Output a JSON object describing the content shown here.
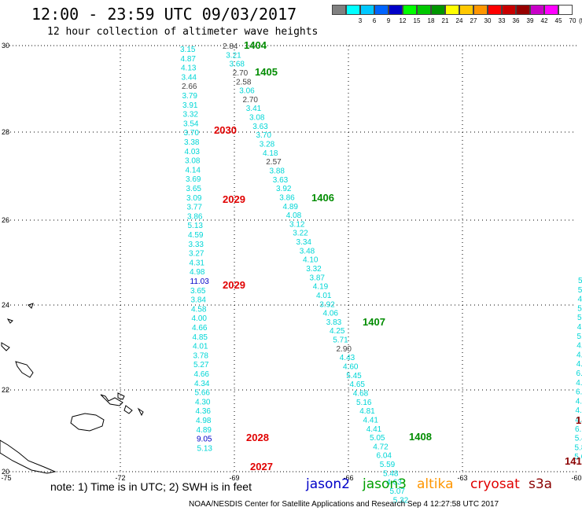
{
  "header": {
    "title": "12:00 - 23:59 UTC 09/03/2017",
    "subtitle": "12 hour collection of altimeter wave heights"
  },
  "legend": {
    "unit": "(ft)",
    "swatches": [
      {
        "color": "#808080",
        "label": ""
      },
      {
        "color": "#00ffff",
        "label": "3"
      },
      {
        "color": "#00c8ff",
        "label": "6"
      },
      {
        "color": "#0064ff",
        "label": "9"
      },
      {
        "color": "#0000c8",
        "label": "12"
      },
      {
        "color": "#00ff00",
        "label": "15"
      },
      {
        "color": "#00c800",
        "label": "18"
      },
      {
        "color": "#009600",
        "label": "21"
      },
      {
        "color": "#ffff00",
        "label": "24"
      },
      {
        "color": "#ffc800",
        "label": "27"
      },
      {
        "color": "#ff9600",
        "label": "30"
      },
      {
        "color": "#ff0000",
        "label": "33"
      },
      {
        "color": "#c80000",
        "label": "36"
      },
      {
        "color": "#960000",
        "label": "39"
      },
      {
        "color": "#c800c8",
        "label": "42"
      },
      {
        "color": "#ff00ff",
        "label": "45"
      },
      {
        "color": "#ffffff",
        "label": "70"
      }
    ]
  },
  "map": {
    "lon_ticks": [
      "-75",
      "-72",
      "-69",
      "-66",
      "-63",
      "-60"
    ],
    "lat_ticks": [
      "30",
      "28",
      "26",
      "24",
      "22",
      "20"
    ],
    "colors": {
      "cyan": "#00d6d6",
      "gray": "#444444",
      "blue": "#0000c8",
      "red": "#e00000",
      "green": "#008c00",
      "darkred": "#8b0000"
    },
    "pass_labels": [
      {
        "text": "1404",
        "color": "green"
      },
      {
        "text": "1405",
        "color": "green"
      },
      {
        "text": "2030",
        "color": "red"
      },
      {
        "text": "2029",
        "color": "red"
      },
      {
        "text": "1406",
        "color": "green"
      },
      {
        "text": "2029",
        "color": "red"
      },
      {
        "text": "1407",
        "color": "green"
      },
      {
        "text": "2028",
        "color": "red"
      },
      {
        "text": "1408",
        "color": "green"
      },
      {
        "text": "2027",
        "color": "red"
      },
      {
        "text": "1-",
        "color": "darkred"
      },
      {
        "text": "141",
        "color": "darkred"
      }
    ],
    "tracks": [
      {
        "name": "track-a",
        "values": [
          {
            "v": "3.15",
            "c": "cyan"
          },
          {
            "v": "4.87",
            "c": "cyan"
          },
          {
            "v": "4.13",
            "c": "cyan"
          },
          {
            "v": "3.44",
            "c": "cyan"
          },
          {
            "v": "2.66",
            "c": "gray"
          },
          {
            "v": "3.79",
            "c": "cyan"
          },
          {
            "v": "3.91",
            "c": "cyan"
          },
          {
            "v": "3.32",
            "c": "cyan"
          },
          {
            "v": "3.54",
            "c": "cyan"
          },
          {
            "v": "3.70",
            "c": "cyan"
          },
          {
            "v": "3.38",
            "c": "cyan"
          },
          {
            "v": "4.03",
            "c": "cyan"
          },
          {
            "v": "3.08",
            "c": "cyan"
          },
          {
            "v": "4.14",
            "c": "cyan"
          },
          {
            "v": "3.69",
            "c": "cyan"
          },
          {
            "v": "3.65",
            "c": "cyan"
          },
          {
            "v": "3.09",
            "c": "cyan"
          },
          {
            "v": "3.77",
            "c": "cyan"
          },
          {
            "v": "3.86",
            "c": "cyan"
          },
          {
            "v": "5.13",
            "c": "cyan"
          },
          {
            "v": "4.59",
            "c": "cyan"
          },
          {
            "v": "3.33",
            "c": "cyan"
          },
          {
            "v": "3.27",
            "c": "cyan"
          },
          {
            "v": "4.31",
            "c": "cyan"
          },
          {
            "v": "4.98",
            "c": "cyan"
          },
          {
            "v": "11.03",
            "c": "blue"
          },
          {
            "v": "3.65",
            "c": "cyan"
          },
          {
            "v": "3.84",
            "c": "cyan"
          },
          {
            "v": "4.58",
            "c": "cyan"
          },
          {
            "v": "4.00",
            "c": "cyan"
          },
          {
            "v": "4.66",
            "c": "cyan"
          },
          {
            "v": "4.85",
            "c": "cyan"
          },
          {
            "v": "4.01",
            "c": "cyan"
          },
          {
            "v": "3.78",
            "c": "cyan"
          },
          {
            "v": "5.27",
            "c": "cyan"
          },
          {
            "v": "4.66",
            "c": "cyan"
          },
          {
            "v": "4.34",
            "c": "cyan"
          },
          {
            "v": "5.66",
            "c": "cyan"
          },
          {
            "v": "4.30",
            "c": "cyan"
          },
          {
            "v": "4.36",
            "c": "cyan"
          },
          {
            "v": "4.98",
            "c": "cyan"
          },
          {
            "v": "4.89",
            "c": "cyan"
          },
          {
            "v": "9.05",
            "c": "blue"
          },
          {
            "v": "5.13",
            "c": "cyan"
          }
        ]
      },
      {
        "name": "track-b",
        "values": [
          {
            "v": "2.84",
            "c": "gray"
          },
          {
            "v": "3.21",
            "c": "cyan"
          },
          {
            "v": "3.68",
            "c": "cyan"
          },
          {
            "v": "2.70",
            "c": "gray"
          },
          {
            "v": "2.58",
            "c": "gray"
          },
          {
            "v": "3.06",
            "c": "cyan"
          },
          {
            "v": "2.70",
            "c": "gray"
          },
          {
            "v": "3.41",
            "c": "cyan"
          },
          {
            "v": "3.08",
            "c": "cyan"
          },
          {
            "v": "3.63",
            "c": "cyan"
          },
          {
            "v": "3.70",
            "c": "cyan"
          },
          {
            "v": "3.28",
            "c": "cyan"
          },
          {
            "v": "4.18",
            "c": "cyan"
          },
          {
            "v": "2.57",
            "c": "gray"
          },
          {
            "v": "3.88",
            "c": "cyan"
          },
          {
            "v": "3.63",
            "c": "cyan"
          },
          {
            "v": "3.92",
            "c": "cyan"
          },
          {
            "v": "3.86",
            "c": "cyan"
          },
          {
            "v": "4.89",
            "c": "cyan"
          },
          {
            "v": "4.08",
            "c": "cyan"
          },
          {
            "v": "3.12",
            "c": "cyan"
          },
          {
            "v": "3.22",
            "c": "cyan"
          },
          {
            "v": "3.34",
            "c": "cyan"
          },
          {
            "v": "3.48",
            "c": "cyan"
          },
          {
            "v": "4.10",
            "c": "cyan"
          },
          {
            "v": "3.32",
            "c": "cyan"
          },
          {
            "v": "3.87",
            "c": "cyan"
          },
          {
            "v": "4.19",
            "c": "cyan"
          },
          {
            "v": "4.01",
            "c": "cyan"
          },
          {
            "v": "3.92",
            "c": "cyan"
          },
          {
            "v": "4.06",
            "c": "cyan"
          },
          {
            "v": "3.83",
            "c": "cyan"
          },
          {
            "v": "4.25",
            "c": "cyan"
          },
          {
            "v": "5.71",
            "c": "cyan"
          },
          {
            "v": "2.90",
            "c": "gray"
          },
          {
            "v": "4.43",
            "c": "cyan"
          },
          {
            "v": "4.60",
            "c": "cyan"
          },
          {
            "v": "5.45",
            "c": "cyan"
          },
          {
            "v": "4.65",
            "c": "cyan"
          },
          {
            "v": "4.68",
            "c": "cyan"
          },
          {
            "v": "5.16",
            "c": "cyan"
          },
          {
            "v": "4.81",
            "c": "cyan"
          },
          {
            "v": "4.41",
            "c": "cyan"
          },
          {
            "v": "4.41",
            "c": "cyan"
          },
          {
            "v": "5.05",
            "c": "cyan"
          },
          {
            "v": "4.72",
            "c": "cyan"
          },
          {
            "v": "6.04",
            "c": "cyan"
          },
          {
            "v": "5.59",
            "c": "cyan"
          },
          {
            "v": "5.48",
            "c": "cyan"
          },
          {
            "v": "4.63",
            "c": "cyan"
          },
          {
            "v": "5.07",
            "c": "cyan"
          },
          {
            "v": "5.32",
            "c": "cyan"
          }
        ]
      },
      {
        "name": "track-c",
        "values": [
          {
            "v": "5.",
            "c": "cyan"
          },
          {
            "v": "5.",
            "c": "cyan"
          },
          {
            "v": "4.",
            "c": "cyan"
          },
          {
            "v": "5.",
            "c": "cyan"
          },
          {
            "v": "5.2",
            "c": "cyan"
          },
          {
            "v": "4.7",
            "c": "cyan"
          },
          {
            "v": "5.70",
            "c": "cyan"
          },
          {
            "v": "4.85",
            "c": "cyan"
          },
          {
            "v": "4.65",
            "c": "cyan"
          },
          {
            "v": "4.19",
            "c": "cyan"
          },
          {
            "v": "6.19",
            "c": "cyan"
          },
          {
            "v": "4.89",
            "c": "cyan"
          },
          {
            "v": "6.24",
            "c": "cyan"
          },
          {
            "v": "4.74",
            "c": "cyan"
          },
          {
            "v": "4.99",
            "c": "cyan"
          },
          {
            "v": "4.68",
            "c": "cyan"
          },
          {
            "v": "6.17",
            "c": "cyan"
          },
          {
            "v": "5.44",
            "c": "cyan"
          },
          {
            "v": "5.84",
            "c": "cyan"
          },
          {
            "v": "5.66",
            "c": "cyan"
          }
        ]
      }
    ]
  },
  "note": {
    "text": "note: 1) Time is in UTC; 2) SWH is in feet",
    "satellites": [
      {
        "name": "jason2",
        "color": "#0000c8"
      },
      {
        "name": "jason3",
        "color": "#00a000"
      },
      {
        "name": "altika",
        "color": "#ff9600"
      },
      {
        "name": "cryosat",
        "color": "#e00000"
      },
      {
        "name": "s3a",
        "color": "#8b0000"
      }
    ]
  },
  "footer": {
    "text": "NOAA/NESDIS Center for Satellite Applications and Research   Sep  4 12:27:58 UTC 2017"
  }
}
